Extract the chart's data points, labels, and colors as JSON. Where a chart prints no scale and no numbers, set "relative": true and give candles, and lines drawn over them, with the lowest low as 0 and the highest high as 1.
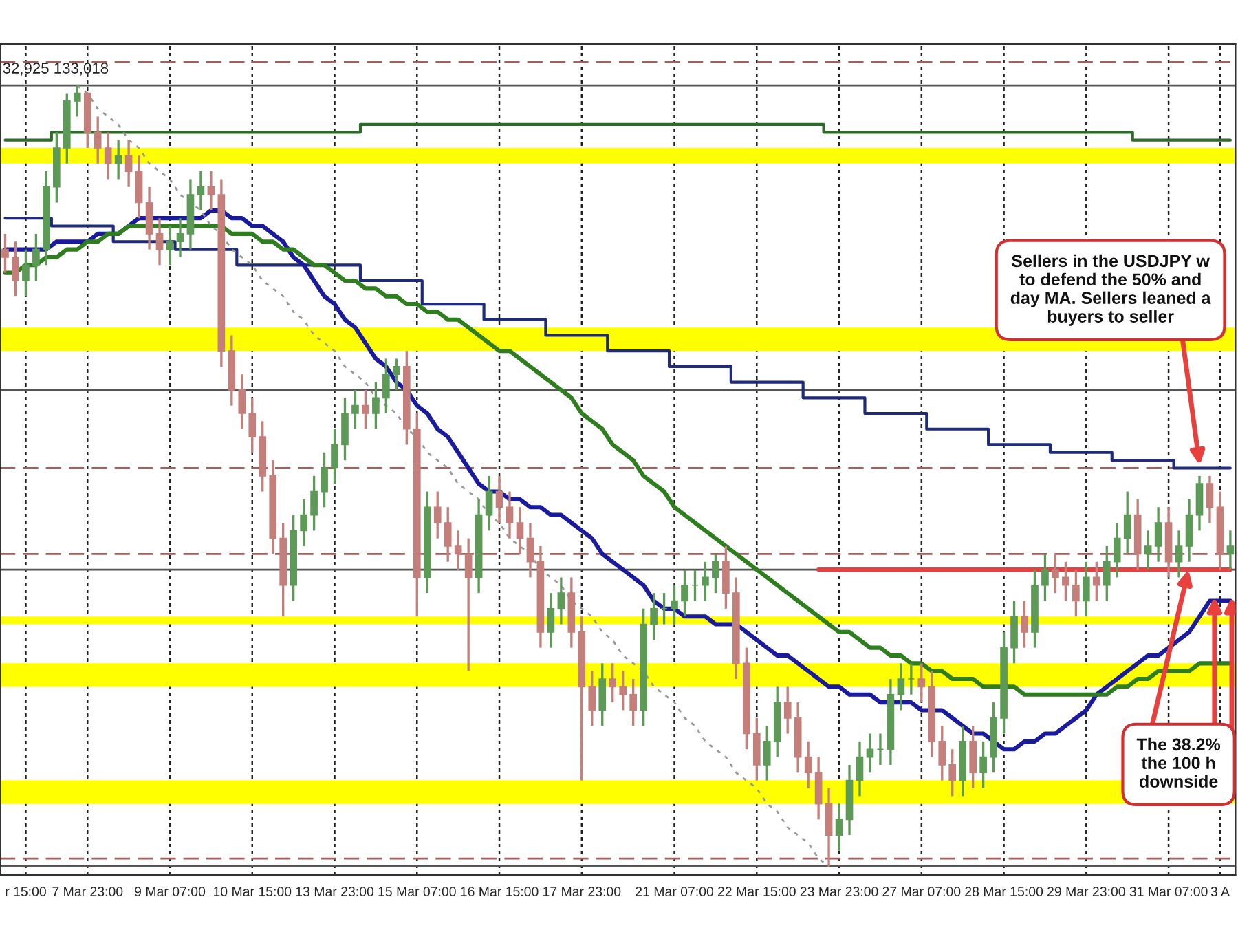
{
  "chart_data": {
    "type": "candlestick",
    "relative": true,
    "categories": [
      null,
      null,
      "r 15:00",
      null,
      null,
      null,
      null,
      null,
      "7 Mar 23:00",
      null,
      null,
      null,
      null,
      null,
      null,
      null,
      "9 Mar 07:00",
      null,
      null,
      null,
      null,
      null,
      null,
      null,
      "10 Mar 15:00",
      null,
      null,
      null,
      null,
      null,
      null,
      null,
      "13 Mar 23:00",
      null,
      null,
      null,
      null,
      null,
      null,
      null,
      "15 Mar 07:00",
      null,
      null,
      null,
      null,
      null,
      null,
      null,
      "16 Mar 15:00",
      null,
      null,
      null,
      null,
      null,
      null,
      null,
      "17 Mar 23:00",
      null,
      null,
      null,
      null,
      null,
      null,
      null,
      null,
      "21 Mar 07:00",
      null,
      null,
      null,
      null,
      null,
      null,
      null,
      "22 Mar 15:00",
      null,
      null,
      null,
      null,
      null,
      null,
      null,
      "23 Mar 23:00",
      null,
      null,
      null,
      null,
      null,
      null,
      null,
      "27 Mar 07:00",
      null,
      null,
      null,
      null,
      null,
      null,
      null,
      "28 Mar 15:00",
      null,
      null,
      null,
      null,
      null,
      null,
      null,
      "29 Mar 23:00",
      null,
      null,
      null,
      null,
      null,
      null,
      null,
      "31 Mar 07:00",
      null,
      null,
      null,
      null,
      "3 A",
      null
    ],
    "ohlc": [
      [
        0.79,
        0.81,
        0.76,
        0.78
      ],
      [
        0.78,
        0.8,
        0.73,
        0.75
      ],
      [
        0.75,
        0.79,
        0.73,
        0.77
      ],
      [
        0.77,
        0.81,
        0.75,
        0.79
      ],
      [
        0.79,
        0.89,
        0.77,
        0.87
      ],
      [
        0.87,
        0.94,
        0.85,
        0.92
      ],
      [
        0.92,
        0.99,
        0.9,
        0.98
      ],
      [
        0.98,
        1.0,
        0.96,
        0.99
      ],
      [
        0.99,
        0.99,
        0.92,
        0.94
      ],
      [
        0.94,
        0.96,
        0.9,
        0.92
      ],
      [
        0.92,
        0.94,
        0.88,
        0.9
      ],
      [
        0.9,
        0.93,
        0.88,
        0.91
      ],
      [
        0.91,
        0.93,
        0.87,
        0.89
      ],
      [
        0.89,
        0.91,
        0.83,
        0.85
      ],
      [
        0.85,
        0.87,
        0.79,
        0.81
      ],
      [
        0.81,
        0.83,
        0.77,
        0.79
      ],
      [
        0.79,
        0.82,
        0.77,
        0.8
      ],
      [
        0.8,
        0.83,
        0.78,
        0.81
      ],
      [
        0.81,
        0.88,
        0.79,
        0.86
      ],
      [
        0.86,
        0.89,
        0.84,
        0.87
      ],
      [
        0.87,
        0.89,
        0.84,
        0.86
      ],
      [
        0.86,
        0.88,
        0.64,
        0.66
      ],
      [
        0.66,
        0.68,
        0.59,
        0.61
      ],
      [
        0.61,
        0.63,
        0.56,
        0.58
      ],
      [
        0.58,
        0.6,
        0.53,
        0.55
      ],
      [
        0.55,
        0.57,
        0.48,
        0.5
      ],
      [
        0.5,
        0.52,
        0.4,
        0.42
      ],
      [
        0.42,
        0.44,
        0.32,
        0.36
      ],
      [
        0.36,
        0.45,
        0.34,
        0.43
      ],
      [
        0.43,
        0.47,
        0.41,
        0.45
      ],
      [
        0.45,
        0.5,
        0.43,
        0.48
      ],
      [
        0.48,
        0.53,
        0.46,
        0.51
      ],
      [
        0.51,
        0.56,
        0.49,
        0.54
      ],
      [
        0.54,
        0.6,
        0.52,
        0.58
      ],
      [
        0.58,
        0.61,
        0.56,
        0.59
      ],
      [
        0.59,
        0.61,
        0.56,
        0.58
      ],
      [
        0.58,
        0.62,
        0.56,
        0.6
      ],
      [
        0.6,
        0.65,
        0.58,
        0.63
      ],
      [
        0.63,
        0.65,
        0.61,
        0.64
      ],
      [
        0.64,
        0.66,
        0.54,
        0.56
      ],
      [
        0.56,
        0.58,
        0.32,
        0.37
      ],
      [
        0.37,
        0.48,
        0.35,
        0.46
      ],
      [
        0.46,
        0.48,
        0.42,
        0.44
      ],
      [
        0.44,
        0.46,
        0.39,
        0.41
      ],
      [
        0.41,
        0.43,
        0.38,
        0.4
      ],
      [
        0.4,
        0.42,
        0.25,
        0.37
      ],
      [
        0.37,
        0.47,
        0.35,
        0.45
      ],
      [
        0.45,
        0.5,
        0.43,
        0.48
      ],
      [
        0.48,
        0.5,
        0.44,
        0.46
      ],
      [
        0.46,
        0.48,
        0.42,
        0.44
      ],
      [
        0.44,
        0.46,
        0.4,
        0.42
      ],
      [
        0.42,
        0.44,
        0.37,
        0.39
      ],
      [
        0.39,
        0.41,
        0.28,
        0.3
      ],
      [
        0.3,
        0.35,
        0.28,
        0.33
      ],
      [
        0.33,
        0.37,
        0.31,
        0.35
      ],
      [
        0.35,
        0.37,
        0.28,
        0.3
      ],
      [
        0.3,
        0.32,
        0.11,
        0.23
      ],
      [
        0.23,
        0.25,
        0.18,
        0.2
      ],
      [
        0.2,
        0.26,
        0.18,
        0.24
      ],
      [
        0.24,
        0.26,
        0.21,
        0.23
      ],
      [
        0.23,
        0.25,
        0.2,
        0.22
      ],
      [
        0.22,
        0.24,
        0.18,
        0.2
      ],
      [
        0.2,
        0.33,
        0.18,
        0.31
      ],
      [
        0.31,
        0.35,
        0.29,
        0.33
      ],
      [
        0.33,
        0.35,
        0.31,
        0.33
      ],
      [
        0.33,
        0.36,
        0.31,
        0.34
      ],
      [
        0.34,
        0.38,
        0.32,
        0.36
      ],
      [
        0.36,
        0.38,
        0.34,
        0.36
      ],
      [
        0.36,
        0.39,
        0.34,
        0.37
      ],
      [
        0.37,
        0.4,
        0.35,
        0.39
      ],
      [
        0.39,
        0.41,
        0.33,
        0.35
      ],
      [
        0.35,
        0.37,
        0.24,
        0.26
      ],
      [
        0.26,
        0.28,
        0.15,
        0.17
      ],
      [
        0.17,
        0.19,
        0.11,
        0.13
      ],
      [
        0.13,
        0.18,
        0.11,
        0.16
      ],
      [
        0.16,
        0.23,
        0.14,
        0.21
      ],
      [
        0.21,
        0.23,
        0.17,
        0.19
      ],
      [
        0.19,
        0.21,
        0.12,
        0.14
      ],
      [
        0.14,
        0.16,
        0.1,
        0.12
      ],
      [
        0.12,
        0.14,
        0.06,
        0.08
      ],
      [
        0.08,
        0.1,
        0.0,
        0.04
      ],
      [
        0.04,
        0.08,
        0.02,
        0.06
      ],
      [
        0.06,
        0.13,
        0.04,
        0.11
      ],
      [
        0.11,
        0.16,
        0.09,
        0.14
      ],
      [
        0.14,
        0.17,
        0.12,
        0.15
      ],
      [
        0.15,
        0.17,
        0.13,
        0.15
      ],
      [
        0.15,
        0.24,
        0.13,
        0.22
      ],
      [
        0.22,
        0.26,
        0.2,
        0.24
      ],
      [
        0.24,
        0.26,
        0.22,
        0.24
      ],
      [
        0.24,
        0.26,
        0.21,
        0.23
      ],
      [
        0.23,
        0.25,
        0.14,
        0.16
      ],
      [
        0.16,
        0.18,
        0.11,
        0.13
      ],
      [
        0.13,
        0.15,
        0.09,
        0.11
      ],
      [
        0.11,
        0.18,
        0.09,
        0.16
      ],
      [
        0.16,
        0.18,
        0.1,
        0.12
      ],
      [
        0.12,
        0.16,
        0.1,
        0.14
      ],
      [
        0.14,
        0.21,
        0.12,
        0.19
      ],
      [
        0.19,
        0.3,
        0.17,
        0.28
      ],
      [
        0.28,
        0.34,
        0.26,
        0.32
      ],
      [
        0.32,
        0.34,
        0.28,
        0.3
      ],
      [
        0.3,
        0.38,
        0.28,
        0.36
      ],
      [
        0.36,
        0.4,
        0.34,
        0.38
      ],
      [
        0.38,
        0.4,
        0.35,
        0.37
      ],
      [
        0.37,
        0.39,
        0.34,
        0.36
      ],
      [
        0.36,
        0.38,
        0.32,
        0.34
      ],
      [
        0.34,
        0.39,
        0.32,
        0.37
      ],
      [
        0.37,
        0.39,
        0.34,
        0.36
      ],
      [
        0.36,
        0.41,
        0.34,
        0.39
      ],
      [
        0.39,
        0.44,
        0.37,
        0.42
      ],
      [
        0.42,
        0.48,
        0.4,
        0.45
      ],
      [
        0.45,
        0.47,
        0.38,
        0.4
      ],
      [
        0.4,
        0.43,
        0.38,
        0.41
      ],
      [
        0.41,
        0.46,
        0.39,
        0.44
      ],
      [
        0.44,
        0.46,
        0.37,
        0.39
      ],
      [
        0.39,
        0.43,
        0.37,
        0.41
      ],
      [
        0.41,
        0.47,
        0.39,
        0.45
      ],
      [
        0.45,
        0.5,
        0.43,
        0.49
      ],
      [
        0.49,
        0.5,
        0.44,
        0.46
      ],
      [
        0.46,
        0.48,
        0.38,
        0.4
      ],
      [
        0.4,
        0.43,
        0.38,
        0.41
      ]
    ],
    "grid": "x",
    "series": [
      {
        "type": "line",
        "color": "#1a1a9c",
        "values": [
          0.79,
          0.79,
          0.79,
          0.79,
          0.79,
          0.8,
          0.8,
          0.8,
          0.8,
          0.81,
          0.81,
          0.81,
          0.82,
          0.83,
          0.83,
          0.83,
          0.83,
          0.83,
          0.83,
          0.83,
          0.84,
          0.84,
          0.83,
          0.83,
          0.82,
          0.82,
          0.81,
          0.8,
          0.78,
          0.77,
          0.75,
          0.73,
          0.72,
          0.7,
          0.69,
          0.67,
          0.65,
          0.64,
          0.62,
          0.61,
          0.59,
          0.58,
          0.56,
          0.55,
          0.53,
          0.51,
          0.49,
          0.48,
          0.48,
          0.47,
          0.47,
          0.46,
          0.46,
          0.45,
          0.45,
          0.44,
          0.43,
          0.42,
          0.4,
          0.39,
          0.38,
          0.37,
          0.36,
          0.34,
          0.33,
          0.33,
          0.32,
          0.32,
          0.32,
          0.31,
          0.31,
          0.31,
          0.3,
          0.29,
          0.28,
          0.27,
          0.27,
          0.26,
          0.25,
          0.24,
          0.23,
          0.23,
          0.22,
          0.22,
          0.22,
          0.21,
          0.21,
          0.21,
          0.21,
          0.2,
          0.2,
          0.2,
          0.19,
          0.18,
          0.17,
          0.17,
          0.16,
          0.15,
          0.15,
          0.16,
          0.16,
          0.17,
          0.17,
          0.18,
          0.19,
          0.2,
          0.22,
          0.23,
          0.24,
          0.25,
          0.26,
          0.27,
          0.27,
          0.28,
          0.29,
          0.3,
          0.32,
          0.34,
          0.34,
          0.34
        ]
      },
      {
        "type": "line",
        "color": "#2e7d1e",
        "values": [
          0.76,
          0.76,
          0.77,
          0.77,
          0.78,
          0.78,
          0.79,
          0.79,
          0.8,
          0.8,
          0.81,
          0.81,
          0.82,
          0.82,
          0.82,
          0.82,
          0.82,
          0.82,
          0.82,
          0.82,
          0.82,
          0.82,
          0.81,
          0.81,
          0.81,
          0.8,
          0.8,
          0.79,
          0.79,
          0.78,
          0.77,
          0.77,
          0.76,
          0.75,
          0.75,
          0.74,
          0.74,
          0.73,
          0.73,
          0.72,
          0.72,
          0.71,
          0.71,
          0.7,
          0.7,
          0.69,
          0.68,
          0.67,
          0.66,
          0.66,
          0.65,
          0.64,
          0.63,
          0.62,
          0.61,
          0.6,
          0.58,
          0.57,
          0.56,
          0.54,
          0.53,
          0.52,
          0.5,
          0.49,
          0.48,
          0.46,
          0.45,
          0.44,
          0.43,
          0.42,
          0.41,
          0.4,
          0.39,
          0.38,
          0.37,
          0.36,
          0.35,
          0.34,
          0.33,
          0.32,
          0.31,
          0.3,
          0.3,
          0.29,
          0.28,
          0.28,
          0.27,
          0.27,
          0.26,
          0.26,
          0.25,
          0.25,
          0.24,
          0.24,
          0.24,
          0.23,
          0.23,
          0.23,
          0.23,
          0.22,
          0.22,
          0.22,
          0.22,
          0.22,
          0.22,
          0.22,
          0.22,
          0.22,
          0.23,
          0.23,
          0.24,
          0.24,
          0.25,
          0.25,
          0.25,
          0.25,
          0.26,
          0.26,
          0.26,
          0.26
        ]
      },
      {
        "type": "step",
        "color": "#2e6b2a",
        "values": [
          0.93,
          0.93,
          0.93,
          0.93,
          0.93,
          0.94,
          0.94,
          0.94,
          0.94,
          0.94,
          0.94,
          0.94,
          0.94,
          0.94,
          0.94,
          0.94,
          0.94,
          0.94,
          0.94,
          0.94,
          0.94,
          0.94,
          0.94,
          0.94,
          0.94,
          0.94,
          0.94,
          0.94,
          0.94,
          0.94,
          0.94,
          0.94,
          0.94,
          0.94,
          0.94,
          0.95,
          0.95,
          0.95,
          0.95,
          0.95,
          0.95,
          0.95,
          0.95,
          0.95,
          0.95,
          0.95,
          0.95,
          0.95,
          0.95,
          0.95,
          0.95,
          0.95,
          0.95,
          0.95,
          0.95,
          0.95,
          0.95,
          0.95,
          0.95,
          0.95,
          0.95,
          0.95,
          0.95,
          0.95,
          0.95,
          0.95,
          0.95,
          0.95,
          0.95,
          0.95,
          0.95,
          0.95,
          0.95,
          0.95,
          0.95,
          0.95,
          0.95,
          0.95,
          0.95,
          0.95,
          0.94,
          0.94,
          0.94,
          0.94,
          0.94,
          0.94,
          0.94,
          0.94,
          0.94,
          0.94,
          0.94,
          0.94,
          0.94,
          0.94,
          0.94,
          0.94,
          0.94,
          0.94,
          0.94,
          0.94,
          0.94,
          0.94,
          0.94,
          0.94,
          0.94,
          0.94,
          0.94,
          0.94,
          0.94,
          0.94,
          0.93,
          0.93,
          0.93,
          0.93,
          0.93,
          0.93,
          0.93,
          0.93,
          0.93,
          0.93
        ]
      },
      {
        "type": "step",
        "color": "#1f2a7a",
        "values": [
          0.83,
          0.83,
          0.83,
          0.83,
          0.83,
          0.82,
          0.82,
          0.82,
          0.82,
          0.82,
          0.82,
          0.8,
          0.8,
          0.8,
          0.8,
          0.8,
          0.8,
          0.79,
          0.79,
          0.79,
          0.79,
          0.79,
          0.79,
          0.77,
          0.77,
          0.77,
          0.77,
          0.77,
          0.77,
          0.77,
          0.77,
          0.77,
          0.77,
          0.77,
          0.77,
          0.75,
          0.75,
          0.75,
          0.75,
          0.75,
          0.75,
          0.72,
          0.72,
          0.72,
          0.72,
          0.72,
          0.72,
          0.7,
          0.7,
          0.7,
          0.7,
          0.7,
          0.7,
          0.68,
          0.68,
          0.68,
          0.68,
          0.68,
          0.68,
          0.66,
          0.66,
          0.66,
          0.66,
          0.66,
          0.66,
          0.64,
          0.64,
          0.64,
          0.64,
          0.64,
          0.64,
          0.62,
          0.62,
          0.62,
          0.62,
          0.62,
          0.62,
          0.62,
          0.6,
          0.6,
          0.6,
          0.6,
          0.6,
          0.6,
          0.58,
          0.58,
          0.58,
          0.58,
          0.58,
          0.58,
          0.56,
          0.56,
          0.56,
          0.56,
          0.56,
          0.56,
          0.54,
          0.54,
          0.54,
          0.54,
          0.54,
          0.54,
          0.53,
          0.53,
          0.53,
          0.53,
          0.53,
          0.53,
          0.52,
          0.52,
          0.52,
          0.52,
          0.52,
          0.52,
          0.51,
          0.51,
          0.51,
          0.51,
          0.51,
          0.51
        ]
      },
      {
        "type": "line",
        "color": "#999999",
        "line_style": "dotted",
        "values": [
          null,
          null,
          null,
          null,
          null,
          null,
          null,
          1.0,
          0.99,
          0.97,
          0.96,
          0.95,
          0.93,
          0.92,
          0.9,
          0.89,
          0.88,
          0.86,
          0.85,
          0.84,
          0.82,
          0.81,
          0.79,
          0.78,
          0.77,
          0.75,
          0.74,
          0.73,
          0.71,
          0.7,
          0.68,
          0.67,
          0.66,
          0.64,
          0.63,
          0.62,
          0.6,
          0.59,
          0.58,
          0.56,
          0.55,
          0.53,
          0.52,
          0.51,
          0.49,
          0.48,
          0.47,
          0.45,
          0.44,
          0.42,
          0.41,
          0.4,
          0.38,
          0.37,
          0.36,
          0.34,
          0.33,
          0.32,
          0.3,
          0.29,
          0.27,
          0.26,
          0.25,
          0.23,
          0.22,
          0.21,
          0.19,
          0.18,
          0.16,
          0.15,
          0.14,
          0.12,
          0.11,
          0.1,
          0.08,
          0.07,
          0.05,
          0.04,
          0.03,
          0.01,
          0.0,
          null,
          null,
          null,
          null,
          null,
          null,
          null,
          null,
          null,
          null,
          null,
          null,
          null,
          null,
          null,
          null,
          null,
          null,
          null,
          null,
          null,
          null,
          null,
          null,
          null,
          null,
          null,
          null,
          null,
          null,
          null,
          null,
          null,
          null,
          null,
          null,
          null,
          null,
          null
        ]
      },
      {
        "type": "line",
        "color": "#e8403c",
        "values": [
          null,
          null,
          null,
          null,
          null,
          null,
          null,
          null,
          null,
          null,
          null,
          null,
          null,
          null,
          null,
          null,
          null,
          null,
          null,
          null,
          null,
          null,
          null,
          null,
          null,
          null,
          null,
          null,
          null,
          null,
          null,
          null,
          null,
          null,
          null,
          null,
          null,
          null,
          null,
          null,
          null,
          null,
          null,
          null,
          null,
          null,
          null,
          null,
          null,
          null,
          null,
          null,
          null,
          null,
          null,
          null,
          null,
          null,
          null,
          null,
          null,
          null,
          null,
          null,
          null,
          null,
          null,
          null,
          null,
          null,
          null,
          null,
          null,
          null,
          null,
          null,
          null,
          null,
          null,
          0.38,
          0.38,
          0.38,
          0.38,
          0.38,
          0.38,
          0.38,
          0.38,
          0.38,
          0.38,
          0.38,
          0.38,
          0.38,
          0.38,
          0.38,
          0.38,
          0.38,
          0.38,
          0.38,
          0.38,
          0.38,
          0.38,
          0.38,
          0.38,
          0.38,
          0.38,
          0.38,
          0.38,
          0.38,
          0.38,
          0.38,
          0.38,
          0.38,
          0.38,
          0.38,
          0.38,
          0.38,
          0.38,
          0.38,
          0.38,
          0.38
        ]
      }
    ],
    "bands": [
      {
        "axis": "y",
        "from": 0.9,
        "to": 0.92,
        "color": "#ffff00"
      },
      {
        "axis": "y",
        "from": 0.66,
        "to": 0.69,
        "color": "#ffff00"
      },
      {
        "axis": "y",
        "from": 0.31,
        "to": 0.32,
        "color": "#ffff00"
      },
      {
        "axis": "y",
        "from": 0.23,
        "to": 0.26,
        "color": "#ffff00"
      },
      {
        "axis": "y",
        "from": 0.08,
        "to": 0.11,
        "color": "#ffff00"
      }
    ],
    "ref_lines": [
      {
        "axis": "y",
        "value": 1.03,
        "color": "#a06060",
        "line_style": "dashed"
      },
      {
        "axis": "y",
        "value": 1.0,
        "color": "#555555",
        "line_style": "solid"
      },
      {
        "axis": "y",
        "value": 0.61,
        "color": "#555555",
        "line_style": "solid"
      },
      {
        "axis": "y",
        "value": 0.51,
        "color": "#a06060",
        "line_style": "dashed"
      },
      {
        "axis": "y",
        "value": 0.4,
        "color": "#a06060",
        "line_style": "dashed"
      },
      {
        "axis": "y",
        "value": 0.38,
        "color": "#555555",
        "line_style": "solid"
      },
      {
        "axis": "y",
        "value": 0.01,
        "color": "#a06060",
        "line_style": "dashed"
      },
      {
        "axis": "y",
        "value": 0.0,
        "color": "#555555",
        "line_style": "solid"
      }
    ],
    "annotations": [
      "32,925 133,018",
      "Sellers in the USDJPY w\nto defend the 50% and\nday MA. Sellers leaned a\nbuyers to seller",
      {
        "text": "The 38.2%\nthe 100 h\ndownside",
        "y": 0.38
      }
    ]
  }
}
